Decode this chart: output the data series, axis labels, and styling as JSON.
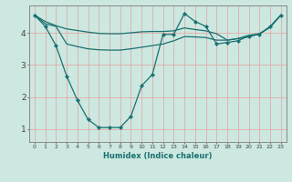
{
  "xlabel": "Humidex (Indice chaleur)",
  "bg_color": "#cce8e0",
  "line_color": "#1a7070",
  "grid_color_v": "#e8a0a0",
  "grid_color_h": "#e8a0a0",
  "xlim": [
    -0.5,
    23.5
  ],
  "ylim": [
    0.6,
    4.85
  ],
  "yticks": [
    1,
    2,
    3,
    4
  ],
  "xticks": [
    0,
    1,
    2,
    3,
    4,
    5,
    6,
    7,
    8,
    9,
    10,
    11,
    12,
    13,
    14,
    15,
    16,
    17,
    18,
    19,
    20,
    21,
    22,
    23
  ],
  "line1_x": [
    0,
    1,
    2,
    3,
    4,
    5,
    6,
    7,
    8,
    9,
    10,
    11,
    12,
    13,
    14,
    15,
    16,
    17,
    18,
    19,
    20,
    21,
    22,
    23
  ],
  "line1_y": [
    4.55,
    4.2,
    3.6,
    2.65,
    1.9,
    1.3,
    1.05,
    1.05,
    1.05,
    1.4,
    2.35,
    2.7,
    3.95,
    3.95,
    4.6,
    4.35,
    4.2,
    3.65,
    3.7,
    3.75,
    3.9,
    3.95,
    4.2,
    4.55
  ],
  "line2_x": [
    0,
    1,
    2,
    3,
    4,
    5,
    6,
    7,
    8,
    9,
    10,
    11,
    12,
    13,
    14,
    15,
    16,
    17,
    18,
    19,
    20,
    21,
    22,
    23
  ],
  "line2_y": [
    4.55,
    4.35,
    4.22,
    4.12,
    4.07,
    4.02,
    3.98,
    3.97,
    3.97,
    4.0,
    4.03,
    4.04,
    4.04,
    4.06,
    4.15,
    4.1,
    4.06,
    3.97,
    3.77,
    3.82,
    3.87,
    3.97,
    4.17,
    4.55
  ],
  "line3_x": [
    0,
    1,
    2,
    3,
    4,
    5,
    6,
    7,
    8,
    9,
    10,
    11,
    12,
    13,
    14,
    15,
    16,
    17,
    18,
    19,
    20,
    21,
    22,
    23
  ],
  "line3_y": [
    4.55,
    4.28,
    4.2,
    3.65,
    3.57,
    3.5,
    3.47,
    3.46,
    3.46,
    3.5,
    3.55,
    3.6,
    3.65,
    3.75,
    3.88,
    3.87,
    3.85,
    3.77,
    3.77,
    3.82,
    3.92,
    3.97,
    4.17,
    4.55
  ]
}
